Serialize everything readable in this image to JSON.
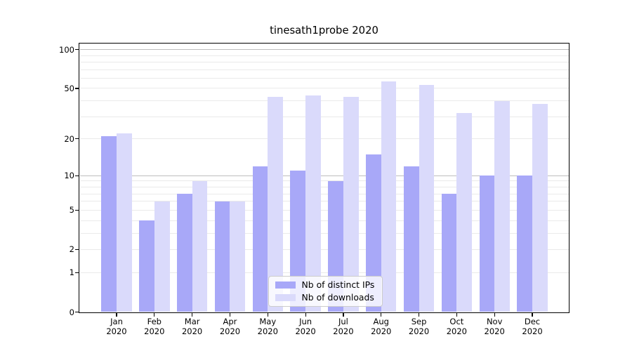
{
  "title": "tinesath1probe 2020",
  "chart_data": {
    "type": "bar",
    "title": "tinesath1probe 2020",
    "categories": [
      "Jan",
      "Feb",
      "Mar",
      "Apr",
      "May",
      "Jun",
      "Jul",
      "Aug",
      "Sep",
      "Oct",
      "Nov",
      "Dec"
    ],
    "category_year": "2020",
    "series": [
      {
        "name": "Nb of distinct IPs",
        "color": "#a8a8f8",
        "values": [
          21,
          4,
          7,
          6,
          12,
          11,
          9,
          15,
          12,
          7,
          10,
          10
        ]
      },
      {
        "name": "Nb of downloads",
        "color": "#dadafb",
        "values": [
          22,
          6,
          9,
          6,
          43,
          44,
          43,
          57,
          53,
          32,
          40,
          38
        ]
      }
    ],
    "yscale": "log10(1+v)",
    "ylim": [
      0,
      110
    ],
    "ytick_values": [
      0,
      1,
      2,
      5,
      10,
      20,
      50,
      100
    ],
    "ytick_labels": [
      "0",
      "1",
      "2",
      "5",
      "10",
      "20",
      "50",
      "100"
    ],
    "grid": {
      "minor_values": [
        1,
        2,
        3,
        4,
        5,
        6,
        7,
        8,
        9,
        20,
        30,
        40,
        50,
        60,
        70,
        80,
        90
      ],
      "major_values": [
        10,
        100
      ],
      "minor_color": "#eaeaea",
      "major_color": "#bdbdbd"
    },
    "legend": {
      "position": "lower center",
      "entries": [
        "Nb of distinct IPs",
        "Nb of downloads"
      ]
    }
  },
  "colors": {
    "background": "#ffffff",
    "axis": "#000000",
    "text": "#000000"
  }
}
